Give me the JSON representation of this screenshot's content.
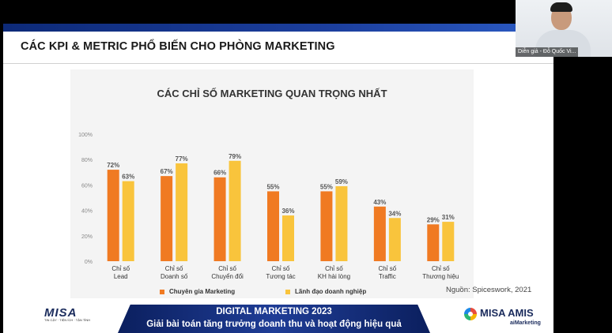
{
  "slide": {
    "title": "CÁC KPI & METRIC PHỔ BIẾN CHO PHÒNG MARKETING",
    "source": "Nguồn: Spiceswork, 2021"
  },
  "colors": {
    "series1": "#f07a22",
    "series2": "#f9c43c",
    "banner": "#1a3584"
  },
  "chart_data": {
    "type": "bar",
    "title": "CÁC CHỈ SỐ MARKETING QUAN TRỌNG NHẤT",
    "categories": [
      [
        "Chỉ số",
        "Lead"
      ],
      [
        "Chỉ số",
        "Doanh số"
      ],
      [
        "Chỉ số",
        "Chuyển đổi"
      ],
      [
        "Chỉ số",
        "Tương tác"
      ],
      [
        "Chỉ số",
        "KH hài lòng"
      ],
      [
        "Chỉ số",
        "Traffic"
      ],
      [
        "Chỉ số",
        "Thương hiệu"
      ]
    ],
    "series": [
      {
        "name": "Chuyên gia Marketing",
        "values": [
          72,
          67,
          66,
          55,
          55,
          43,
          29
        ],
        "labels": [
          "72%",
          "67%",
          "66%",
          "55%",
          "55%",
          "43%",
          "29%"
        ]
      },
      {
        "name": "Lãnh đạo doanh nghiệp",
        "values": [
          63,
          77,
          79,
          36,
          59,
          34,
          31
        ],
        "labels": [
          "63%",
          "77%",
          "79%",
          "36%",
          "59%",
          "34%",
          "31%"
        ]
      }
    ],
    "y_ticks": [
      "0%",
      "20%",
      "40%",
      "60%",
      "80%",
      "100%"
    ],
    "ylim": [
      0,
      100
    ],
    "legend_position": "bottom"
  },
  "footer": {
    "logo_text": "MISA",
    "logo_tagline": "TIN CẬY · TIỆN ÍCH · TẬN TÌNH",
    "banner_line1": "DIGITAL MARKETING 2023",
    "banner_line2": "Giải bài toán tăng trưởng doanh thu và hoạt động hiệu quả",
    "brand_right": "MISA AMIS",
    "brand_right_sub": "aiMarketing"
  },
  "camera": {
    "label": "Diễn giả - Đỗ Quốc Vi..."
  }
}
